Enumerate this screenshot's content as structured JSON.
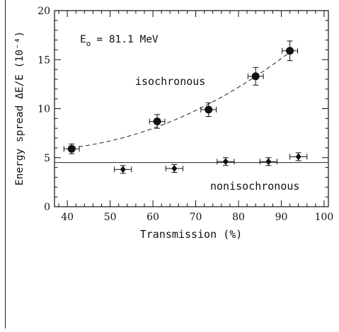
{
  "chart_data": {
    "type": "scatter",
    "xlabel": "Transmission (%)",
    "ylabel": "Energy spread ΔE/E (10⁻⁴)",
    "xlim": [
      37,
      101
    ],
    "ylim": [
      0,
      20
    ],
    "x_ticks": [
      40,
      50,
      60,
      70,
      80,
      90,
      100
    ],
    "y_ticks": [
      0,
      5,
      10,
      15,
      20
    ],
    "grid": false,
    "legend": "none",
    "annotations": {
      "energy_label": "E",
      "energy_sub": "o",
      "energy_value": "= 81.1 MeV",
      "isochronous_label": "isochronous",
      "nonisochronous_label": "nonisochronous"
    },
    "series": [
      {
        "marker": "circle",
        "fit": "dashed-curve",
        "points": [
          {
            "x": 41.0,
            "y": 5.9,
            "xerr": 1.8,
            "yerr": 0.5
          },
          {
            "x": 61.0,
            "y": 8.7,
            "xerr": 1.8,
            "yerr": 0.7
          },
          {
            "x": 73.0,
            "y": 9.9,
            "xerr": 1.8,
            "yerr": 0.7
          },
          {
            "x": 84.0,
            "y": 13.3,
            "xerr": 1.8,
            "yerr": 0.9
          },
          {
            "x": 92.0,
            "y": 15.9,
            "xerr": 1.8,
            "yerr": 1.0
          }
        ]
      },
      {
        "marker": "diamond",
        "fit": "solid-line",
        "fit_value": 4.5,
        "points": [
          {
            "x": 53.0,
            "y": 3.8,
            "xerr": 2.0,
            "yerr": 0.4
          },
          {
            "x": 65.0,
            "y": 3.9,
            "xerr": 2.0,
            "yerr": 0.4
          },
          {
            "x": 77.0,
            "y": 4.6,
            "xerr": 2.0,
            "yerr": 0.4
          },
          {
            "x": 87.0,
            "y": 4.6,
            "xerr": 2.0,
            "yerr": 0.4
          },
          {
            "x": 94.0,
            "y": 5.1,
            "xerr": 2.0,
            "yerr": 0.4
          }
        ]
      }
    ]
  }
}
